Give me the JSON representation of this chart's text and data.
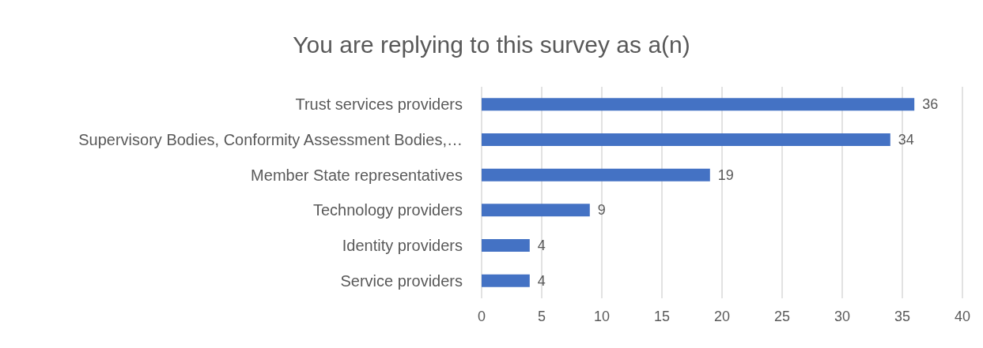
{
  "chart_data": {
    "type": "bar",
    "orientation": "horizontal",
    "title": "You are replying to this survey as a(n)",
    "categories": [
      "Trust services providers",
      "Supervisory Bodies, Conformity Assessment Bodies,…",
      "Member State representatives",
      "Technology providers",
      "Identity providers",
      "Service providers"
    ],
    "values": [
      36,
      34,
      19,
      9,
      4,
      4
    ],
    "color": "#4472c4",
    "xlim": [
      0,
      40
    ],
    "xticks": [
      0,
      5,
      10,
      15,
      20,
      25,
      30,
      35,
      40
    ],
    "grid": "x",
    "data_labels": true
  }
}
